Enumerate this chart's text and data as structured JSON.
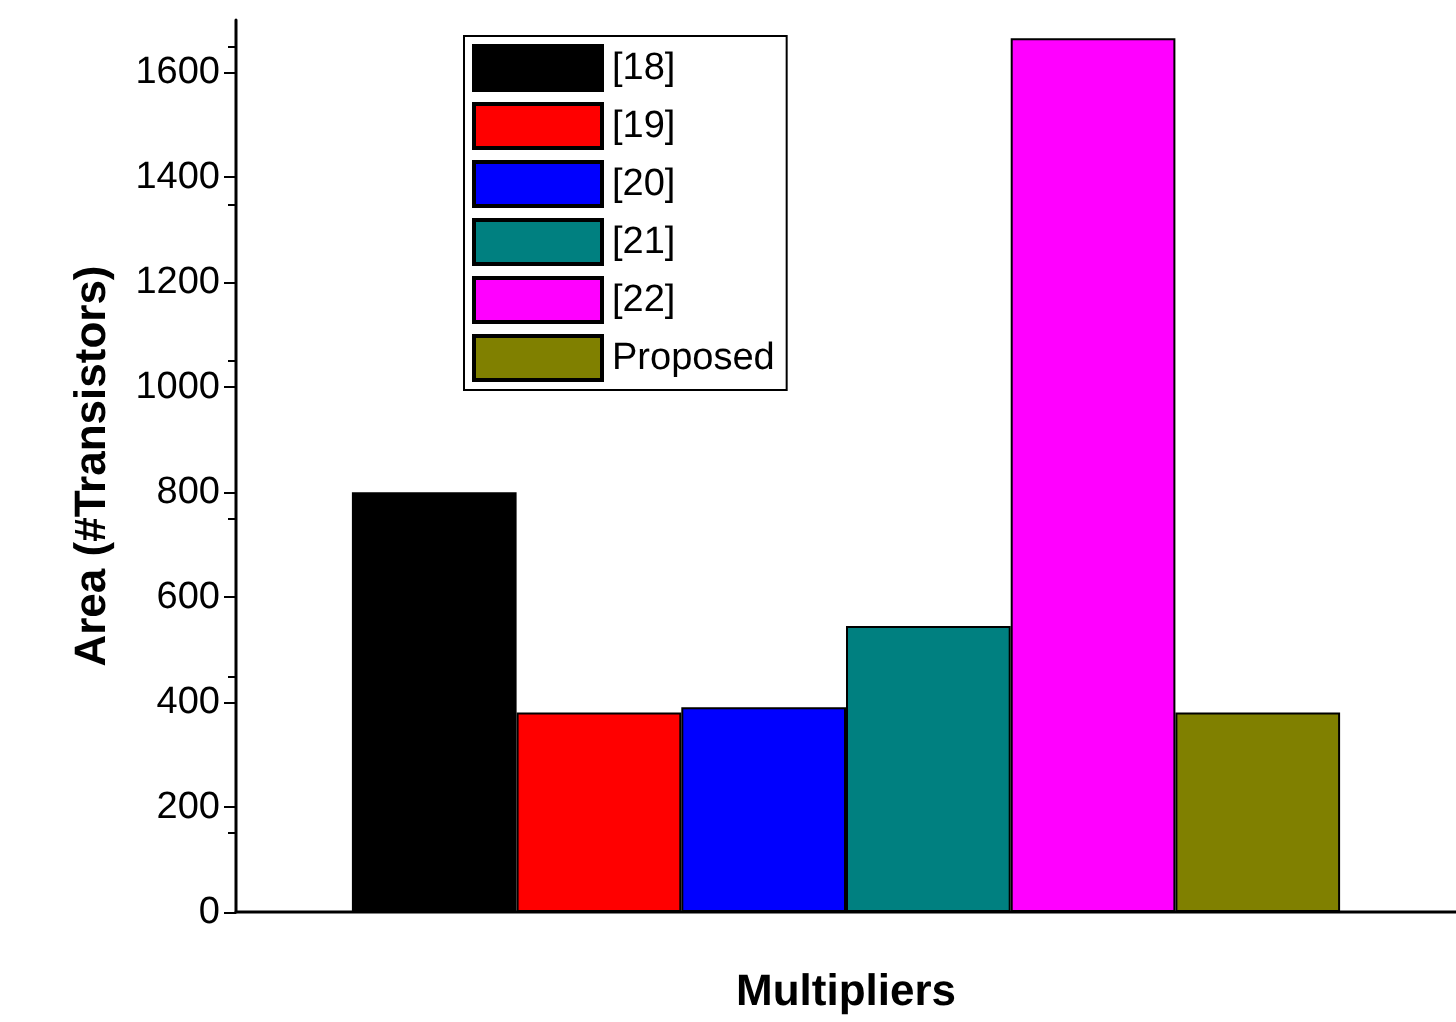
{
  "chart_data": {
    "type": "bar",
    "xlabel": "Multipliers",
    "ylabel": "Area (#Transistors)",
    "categories": [
      null
    ],
    "series": [
      {
        "name": "[18]",
        "color": "#000000",
        "values": [
          800
        ]
      },
      {
        "name": "[19]",
        "color": "#ff0000",
        "values": [
          380
        ]
      },
      {
        "name": "[20]",
        "color": "#0000ff",
        "values": [
          390
        ]
      },
      {
        "name": "[21]",
        "color": "#008080",
        "values": [
          545
        ]
      },
      {
        "name": "[22]",
        "color": "#ff00ff",
        "values": [
          1665
        ]
      },
      {
        "name": "Proposed",
        "color": "#808000",
        "values": [
          380
        ]
      }
    ],
    "ylim": [
      0,
      1700
    ],
    "yticks": [
      0,
      200,
      400,
      600,
      800,
      1000,
      1200,
      1400,
      1600
    ],
    "grid": false,
    "legend": "top left",
    "tick_labels": "y"
  }
}
